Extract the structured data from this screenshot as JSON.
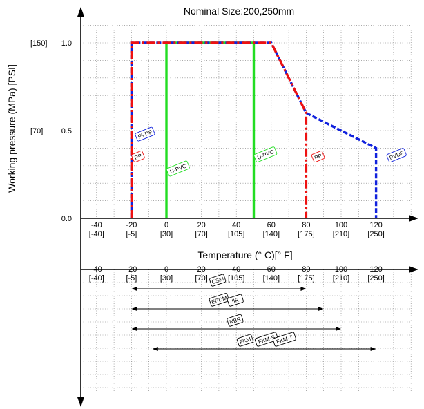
{
  "chart_data": {
    "type": "line",
    "title": "Nominal Size:200,250mm",
    "xlabel": "Temperature (° C)[° F]",
    "ylabel": "Working pressure (MPa) [PSI]",
    "xlim": [
      -60,
      140
    ],
    "ylim": [
      0,
      1.2
    ],
    "grid": true,
    "x_ticks": [
      {
        "value": -40,
        "label": "-40",
        "sub": "[-40]"
      },
      {
        "value": -20,
        "label": "-20",
        "sub": "[-5]"
      },
      {
        "value": 0,
        "label": "0",
        "sub": "[30]"
      },
      {
        "value": 20,
        "label": "20",
        "sub": "[70]"
      },
      {
        "value": 40,
        "label": "40",
        "sub": "[105]"
      },
      {
        "value": 60,
        "label": "60",
        "sub": "[140]"
      },
      {
        "value": 80,
        "label": "80",
        "sub": "[175]"
      },
      {
        "value": 100,
        "label": "100",
        "sub": "[210]"
      },
      {
        "value": 120,
        "label": "120",
        "sub": "[250]"
      }
    ],
    "y_ticks": [
      {
        "value": 0,
        "label": "0.0",
        "sub": ""
      },
      {
        "value": 0.5,
        "label": "0.5",
        "sub": "[70]"
      },
      {
        "value": 1.0,
        "label": "1.0",
        "sub": "[150]"
      }
    ],
    "series": [
      {
        "name": "U-PVC",
        "color": "#22dd22",
        "dash": "solid",
        "points": [
          [
            0,
            0
          ],
          [
            0,
            1.0
          ],
          [
            50,
            1.0
          ],
          [
            50,
            0
          ]
        ],
        "tag_at": [
          0,
          0.26
        ]
      },
      {
        "name": "PVDF",
        "color": "#1122dd",
        "dash": "dashed",
        "points": [
          [
            -20,
            0
          ],
          [
            -20,
            1.0
          ],
          [
            60,
            1.0
          ],
          [
            80,
            0.6
          ],
          [
            120,
            0.4
          ],
          [
            120,
            0
          ]
        ],
        "tag_at": [
          -18,
          0.46
        ]
      },
      {
        "name": "PP",
        "color": "#ee1111",
        "dash": "dashdot",
        "points": [
          [
            -20,
            0
          ],
          [
            -20,
            1.0
          ],
          [
            60,
            1.0
          ],
          [
            80,
            0.6
          ],
          [
            80,
            0
          ]
        ],
        "tag_at": [
          -20,
          0.34
        ]
      }
    ],
    "extra_tags": [
      {
        "text": "U-PVC",
        "color": "#22dd22",
        "at": [
          50,
          0.34
        ]
      },
      {
        "text": "PP",
        "color": "#ee1111",
        "at": [
          83,
          0.34
        ]
      },
      {
        "text": "PVDF",
        "color": "#1122dd",
        "at": [
          126,
          0.34
        ]
      }
    ],
    "materials": [
      {
        "labels": [
          "CSM"
        ],
        "range": [
          -20,
          80
        ]
      },
      {
        "labels": [
          "EPDM",
          "IIR"
        ],
        "range": [
          -20,
          90
        ]
      },
      {
        "labels": [
          "NBR"
        ],
        "range": [
          -20,
          100
        ]
      },
      {
        "labels": [
          "FKM",
          "FKM-S",
          "FKM-T"
        ],
        "range": [
          0,
          120
        ]
      }
    ]
  }
}
